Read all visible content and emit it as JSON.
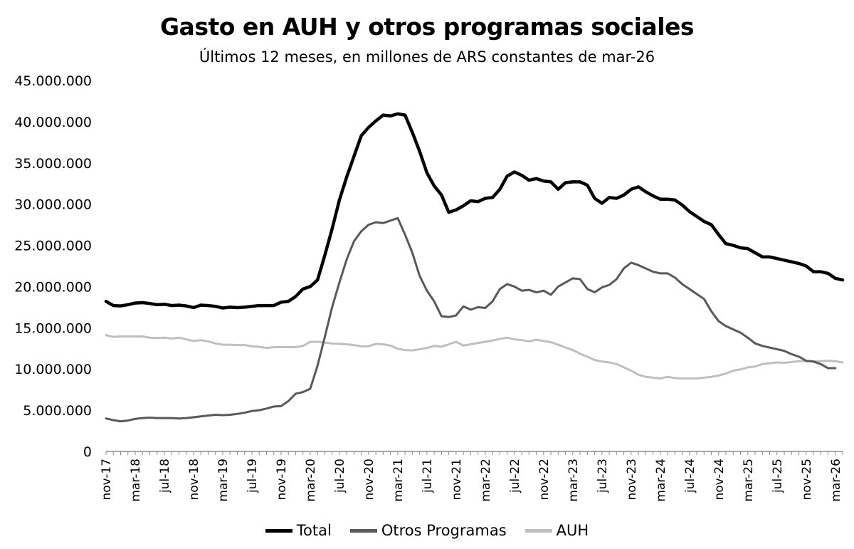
{
  "chart_data": {
    "type": "line",
    "title": "Gasto en AUH y otros programas sociales",
    "subtitle": "Últimos 12 meses, en millones de ARS constantes de mar-26",
    "xlabel": "",
    "ylabel": "",
    "ylim": [
      0,
      45000000
    ],
    "yticks": [
      0,
      5000000,
      10000000,
      15000000,
      20000000,
      25000000,
      30000000,
      35000000,
      40000000,
      45000000
    ],
    "ytick_labels": [
      "0",
      "5.000.000",
      "10.000.000",
      "15.000.000",
      "20.000.000",
      "25.000.000",
      "30.000.000",
      "35.000.000",
      "40.000.000",
      "45.000.000"
    ],
    "xtick_labels": [
      "nov-17",
      "mar-18",
      "jul-18",
      "nov-18",
      "mar-19",
      "jul-19",
      "nov-19",
      "mar-20",
      "jul-20",
      "nov-20",
      "mar-21",
      "jul-21",
      "nov-21",
      "mar-22",
      "jul-22",
      "nov-22",
      "mar-23",
      "jul-23",
      "nov-23",
      "mar-24",
      "jul-24",
      "nov-24",
      "mar-25",
      "jul-25",
      "nov-25",
      "mar-26"
    ],
    "grid": false,
    "legend": "bottom",
    "series": [
      {
        "name": "Total",
        "color": "#000000",
        "values": [
          18200000,
          17700000,
          17650000,
          17800000,
          18000000,
          18050000,
          17950000,
          17800000,
          17850000,
          17700000,
          17750000,
          17650000,
          17450000,
          17750000,
          17700000,
          17600000,
          17400000,
          17500000,
          17450000,
          17500000,
          17600000,
          17700000,
          17700000,
          17700000,
          18100000,
          18200000,
          18800000,
          19700000,
          20000000,
          20800000,
          23800000,
          27000000,
          30500000,
          33300000,
          35800000,
          38300000,
          39300000,
          40100000,
          40800000,
          40700000,
          40950000,
          40800000,
          38700000,
          36400000,
          33800000,
          32200000,
          31100000,
          29000000,
          29300000,
          29800000,
          30400000,
          30300000,
          30700000,
          30800000,
          31800000,
          33400000,
          33900000,
          33500000,
          32900000,
          33100000,
          32800000,
          32700000,
          31800000,
          32600000,
          32700000,
          32700000,
          32300000,
          30700000,
          30100000,
          30800000,
          30700000,
          31100000,
          31800000,
          32100000,
          31500000,
          31000000,
          30600000,
          30600000,
          30500000,
          29900000,
          29100000,
          28500000,
          27900000,
          27500000,
          26300000,
          25200000,
          25000000,
          24700000,
          24600000,
          24100000,
          23600000,
          23600000,
          23400000,
          23200000,
          23000000,
          22800000,
          22500000,
          21800000,
          21800000,
          21600000,
          21000000,
          20800000
        ]
      },
      {
        "name": "Otros Programas",
        "color": "#595959",
        "values": [
          4000000,
          3800000,
          3650000,
          3750000,
          3950000,
          4050000,
          4100000,
          4050000,
          4050000,
          4050000,
          4000000,
          4050000,
          4150000,
          4250000,
          4350000,
          4450000,
          4400000,
          4450000,
          4550000,
          4700000,
          4900000,
          5000000,
          5200000,
          5450000,
          5500000,
          6100000,
          7000000,
          7200000,
          7600000,
          10400000,
          13900000,
          17500000,
          20500000,
          23300000,
          25500000,
          26700000,
          27500000,
          27800000,
          27700000,
          28000000,
          28300000,
          26300000,
          24100000,
          21300000,
          19500000,
          18200000,
          16400000,
          16300000,
          16500000,
          17600000,
          17200000,
          17500000,
          17400000,
          18200000,
          19700000,
          20300000,
          20000000,
          19500000,
          19600000,
          19300000,
          19500000,
          19000000,
          20000000,
          20500000,
          21000000,
          20900000,
          19700000,
          19300000,
          19900000,
          20200000,
          20900000,
          22200000,
          22900000,
          22600000,
          22200000,
          21800000,
          21600000,
          21600000,
          21100000,
          20300000,
          19700000,
          19100000,
          18500000,
          17000000,
          15800000,
          15200000,
          14800000,
          14400000,
          13800000,
          13100000,
          12800000,
          12600000,
          12400000,
          12200000,
          11800000,
          11500000,
          11000000,
          10900000,
          10600000,
          10100000,
          10100000
        ]
      },
      {
        "name": "AUH",
        "color": "#bfbfbf",
        "values": [
          14100000,
          13900000,
          13950000,
          13950000,
          13950000,
          13950000,
          13800000,
          13750000,
          13800000,
          13700000,
          13800000,
          13600000,
          13400000,
          13500000,
          13350000,
          13100000,
          12950000,
          12950000,
          12900000,
          12900000,
          12750000,
          12700000,
          12550000,
          12650000,
          12650000,
          12650000,
          12650000,
          12800000,
          13300000,
          13300000,
          13200000,
          13100000,
          13050000,
          13000000,
          12900000,
          12750000,
          12750000,
          13050000,
          13000000,
          12850000,
          12450000,
          12300000,
          12250000,
          12400000,
          12550000,
          12800000,
          12700000,
          13000000,
          13300000,
          12850000,
          13000000,
          13150000,
          13300000,
          13450000,
          13650000,
          13800000,
          13600000,
          13500000,
          13350000,
          13550000,
          13400000,
          13250000,
          12950000,
          12600000,
          12300000,
          11850000,
          11500000,
          11100000,
          10900000,
          10800000,
          10600000,
          10200000,
          9800000,
          9300000,
          9050000,
          8950000,
          8850000,
          9050000,
          8900000,
          8850000,
          8850000,
          8850000,
          8950000,
          9050000,
          9200000,
          9450000,
          9800000,
          9950000,
          10200000,
          10300000,
          10600000,
          10700000,
          10800000,
          10750000,
          10850000,
          10950000,
          10950000,
          10950000,
          10950000,
          11000000,
          10950000,
          10800000
        ]
      }
    ]
  }
}
